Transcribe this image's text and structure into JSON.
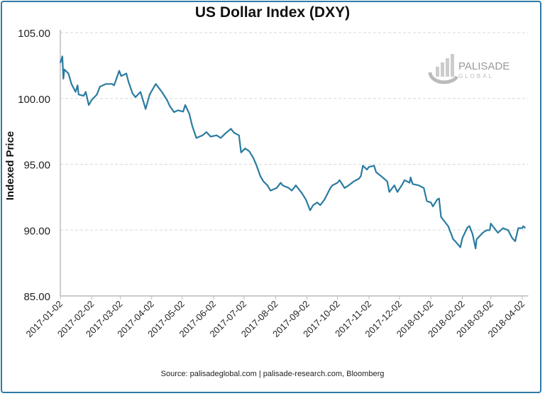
{
  "chart_data": {
    "type": "line",
    "title": "US Dollar Index (DXY)",
    "xlabel": "",
    "ylabel": "Indexed Price",
    "ylim": [
      85,
      105
    ],
    "yticks": [
      "85.00",
      "90.00",
      "95.00",
      "100.00",
      "105.00"
    ],
    "xlim": [
      "2017-01-02",
      "2018-04-08"
    ],
    "xticks": [
      "2017-01-02",
      "2017-02-02",
      "2017-03-02",
      "2017-04-02",
      "2017-05-02",
      "2017-06-02",
      "2017-07-02",
      "2017-08-02",
      "2017-09-02",
      "2017-10-02",
      "2017-11-02",
      "2017-12-02",
      "2018-01-02",
      "2018-02-02",
      "2018-03-02",
      "2018-04-02"
    ],
    "grid": "horizontal-dashed",
    "line_color": "#2a7ba0",
    "source": "Source:  palisadeglobal.com  |  palisade-research.com,  Bloomberg",
    "logo": {
      "name": "PALISADE",
      "sub": "GLOBAL"
    },
    "points": [
      [
        "2017-01-02",
        102.7
      ],
      [
        "2017-01-04",
        103.2
      ],
      [
        "2017-01-05",
        101.5
      ],
      [
        "2017-01-06",
        102.2
      ],
      [
        "2017-01-10",
        101.9
      ],
      [
        "2017-01-13",
        101.1
      ],
      [
        "2017-01-17",
        100.5
      ],
      [
        "2017-01-19",
        101.0
      ],
      [
        "2017-01-20",
        100.3
      ],
      [
        "2017-01-25",
        100.2
      ],
      [
        "2017-01-27",
        100.5
      ],
      [
        "2017-01-30",
        99.5
      ],
      [
        "2017-02-02",
        99.9
      ],
      [
        "2017-02-07",
        100.3
      ],
      [
        "2017-02-10",
        100.9
      ],
      [
        "2017-02-16",
        101.1
      ],
      [
        "2017-02-22",
        101.1
      ],
      [
        "2017-02-24",
        101.0
      ],
      [
        "2017-03-01",
        102.1
      ],
      [
        "2017-03-03",
        101.7
      ],
      [
        "2017-03-08",
        101.9
      ],
      [
        "2017-03-10",
        101.3
      ],
      [
        "2017-03-14",
        100.4
      ],
      [
        "2017-03-17",
        100.1
      ],
      [
        "2017-03-22",
        100.5
      ],
      [
        "2017-03-27",
        99.2
      ],
      [
        "2017-03-31",
        100.3
      ],
      [
        "2017-04-06",
        101.1
      ],
      [
        "2017-04-12",
        100.5
      ],
      [
        "2017-04-17",
        99.9
      ],
      [
        "2017-04-20",
        99.4
      ],
      [
        "2017-04-24",
        98.96
      ],
      [
        "2017-04-28",
        99.1
      ],
      [
        "2017-05-03",
        99.0
      ],
      [
        "2017-05-05",
        99.5
      ],
      [
        "2017-05-09",
        98.85
      ],
      [
        "2017-05-12",
        97.9
      ],
      [
        "2017-05-16",
        97.0
      ],
      [
        "2017-05-22",
        97.2
      ],
      [
        "2017-05-26",
        97.45
      ],
      [
        "2017-05-30",
        97.1
      ],
      [
        "2017-06-05",
        97.2
      ],
      [
        "2017-06-09",
        97.0
      ],
      [
        "2017-06-13",
        97.3
      ],
      [
        "2017-06-19",
        97.7
      ],
      [
        "2017-06-22",
        97.4
      ],
      [
        "2017-06-27",
        97.2
      ],
      [
        "2017-06-29",
        95.9
      ],
      [
        "2017-07-03",
        96.2
      ],
      [
        "2017-07-07",
        96.0
      ],
      [
        "2017-07-11",
        95.5
      ],
      [
        "2017-07-14",
        94.97
      ],
      [
        "2017-07-18",
        94.1
      ],
      [
        "2017-07-21",
        93.7
      ],
      [
        "2017-07-25",
        93.4
      ],
      [
        "2017-07-28",
        93.0
      ],
      [
        "2017-08-03",
        93.2
      ],
      [
        "2017-08-07",
        93.6
      ],
      [
        "2017-08-09",
        93.4
      ],
      [
        "2017-08-15",
        93.2
      ],
      [
        "2017-08-18",
        93.0
      ],
      [
        "2017-08-22",
        93.4
      ],
      [
        "2017-08-28",
        92.8
      ],
      [
        "2017-09-01",
        92.3
      ],
      [
        "2017-09-05",
        91.5
      ],
      [
        "2017-09-08",
        91.9
      ],
      [
        "2017-09-12",
        92.1
      ],
      [
        "2017-09-15",
        91.9
      ],
      [
        "2017-09-19",
        92.3
      ],
      [
        "2017-09-25",
        93.2
      ],
      [
        "2017-09-27",
        93.4
      ],
      [
        "2017-10-02",
        93.6
      ],
      [
        "2017-10-04",
        93.8
      ],
      [
        "2017-10-09",
        93.2
      ],
      [
        "2017-10-13",
        93.4
      ],
      [
        "2017-10-18",
        93.7
      ],
      [
        "2017-10-23",
        93.9
      ],
      [
        "2017-10-25",
        94.1
      ],
      [
        "2017-10-27",
        94.9
      ],
      [
        "2017-10-31",
        94.6
      ],
      [
        "2017-11-02",
        94.8
      ],
      [
        "2017-11-07",
        94.9
      ],
      [
        "2017-11-09",
        94.4
      ],
      [
        "2017-11-14",
        94.1
      ],
      [
        "2017-11-20",
        93.7
      ],
      [
        "2017-11-22",
        92.9
      ],
      [
        "2017-11-27",
        93.4
      ],
      [
        "2017-11-30",
        92.9
      ],
      [
        "2017-12-05",
        93.5
      ],
      [
        "2017-12-07",
        93.8
      ],
      [
        "2017-12-12",
        93.6
      ],
      [
        "2017-12-13",
        94.0
      ],
      [
        "2017-12-15",
        93.5
      ],
      [
        "2017-12-21",
        93.4
      ],
      [
        "2017-12-26",
        93.2
      ],
      [
        "2017-12-29",
        92.2
      ],
      [
        "2018-01-02",
        92.1
      ],
      [
        "2018-01-04",
        91.8
      ],
      [
        "2018-01-08",
        92.3
      ],
      [
        "2018-01-10",
        92.4
      ],
      [
        "2018-01-12",
        91.0
      ],
      [
        "2018-01-17",
        90.5
      ],
      [
        "2018-01-19",
        90.3
      ],
      [
        "2018-01-24",
        89.3
      ],
      [
        "2018-01-26",
        89.15
      ],
      [
        "2018-01-31",
        88.7
      ],
      [
        "2018-02-02",
        89.4
      ],
      [
        "2018-02-07",
        90.2
      ],
      [
        "2018-02-09",
        90.3
      ],
      [
        "2018-02-12",
        89.7
      ],
      [
        "2018-02-15",
        88.6
      ],
      [
        "2018-02-16",
        89.3
      ],
      [
        "2018-02-22",
        89.8
      ],
      [
        "2018-02-26",
        90.0
      ],
      [
        "2018-03-01",
        90.0
      ],
      [
        "2018-03-02",
        90.5
      ],
      [
        "2018-03-07",
        90.0
      ],
      [
        "2018-03-09",
        89.8
      ],
      [
        "2018-03-14",
        90.15
      ],
      [
        "2018-03-19",
        90.0
      ],
      [
        "2018-03-23",
        89.4
      ],
      [
        "2018-03-26",
        89.15
      ],
      [
        "2018-03-29",
        90.15
      ],
      [
        "2018-04-02",
        90.15
      ],
      [
        "2018-04-03",
        90.3
      ],
      [
        "2018-04-05",
        90.15
      ]
    ]
  }
}
